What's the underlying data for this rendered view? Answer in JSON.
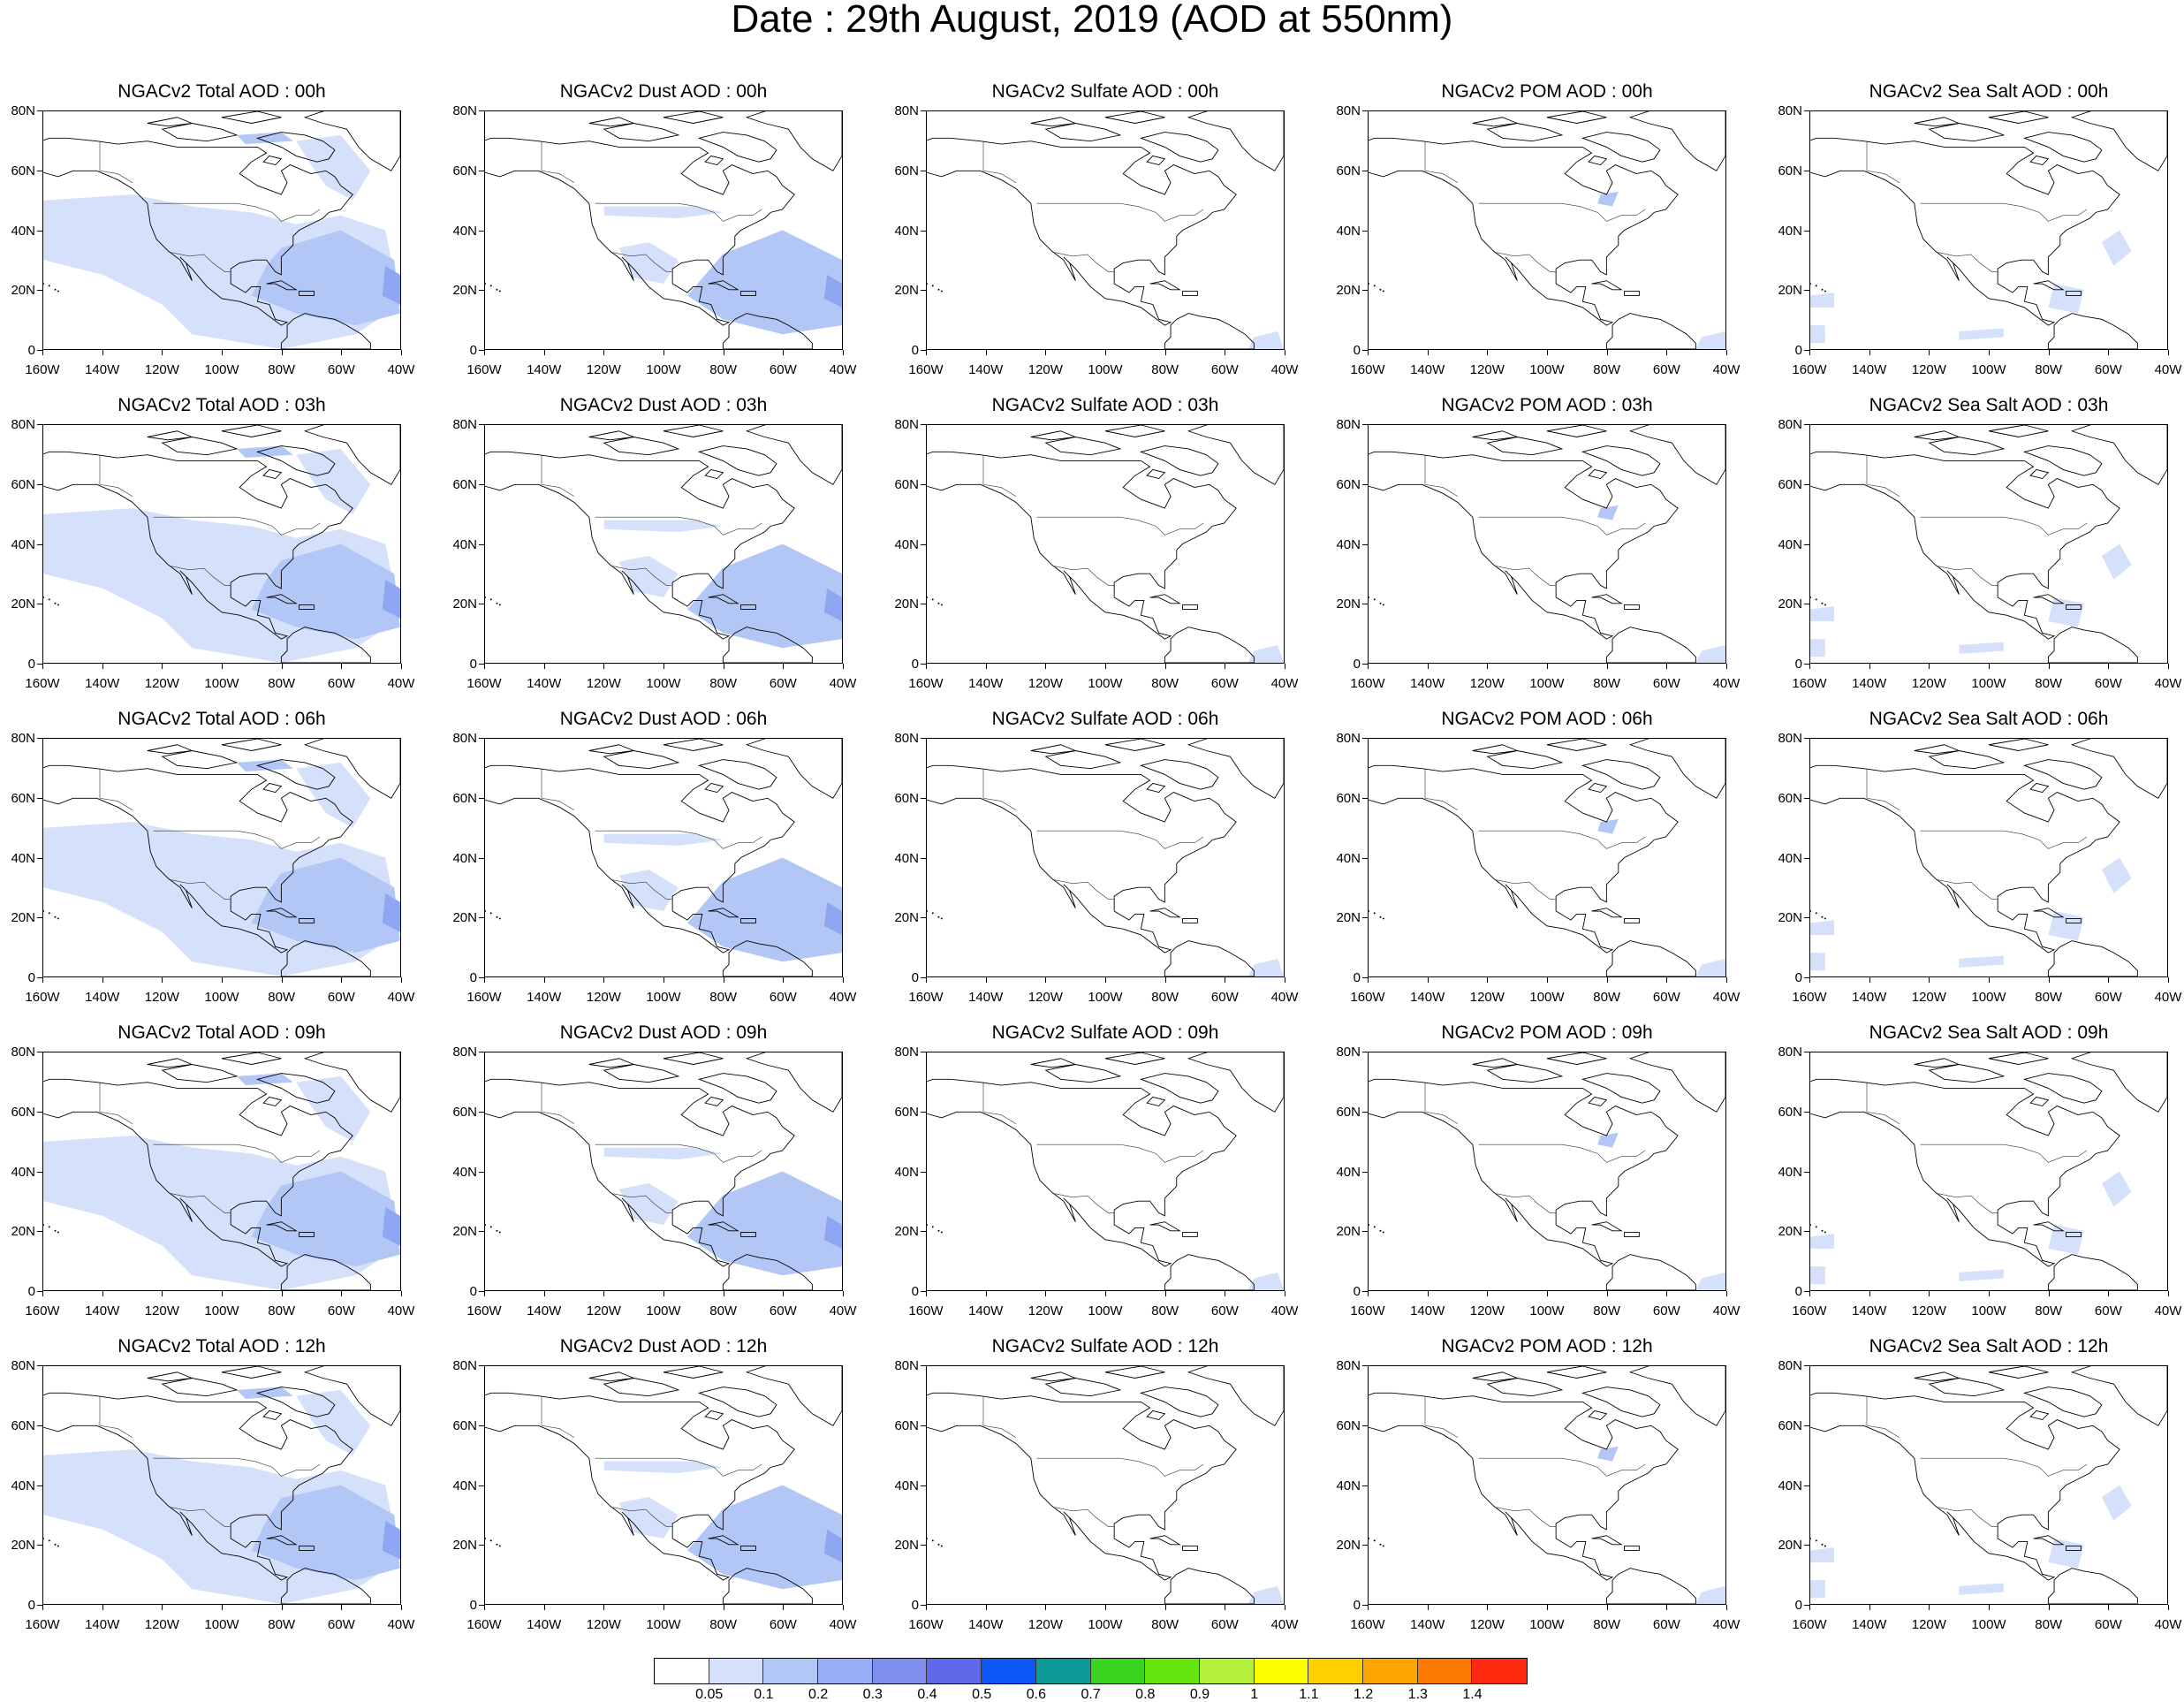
{
  "figure_title": "Date : 29th August, 2019 (AOD at 550nm)",
  "lat_ticks": [
    "0",
    "20N",
    "40N",
    "60N",
    "80N"
  ],
  "lon_ticks": [
    "160W",
    "140W",
    "120W",
    "100W",
    "80W",
    "60W",
    "40W"
  ],
  "panels": [
    {
      "row": 0,
      "col": 0,
      "title": "NGACv2 Total AOD : 00h",
      "species": "total",
      "hour": "00h"
    },
    {
      "row": 0,
      "col": 1,
      "title": "NGACv2 Dust AOD : 00h",
      "species": "dust",
      "hour": "00h"
    },
    {
      "row": 0,
      "col": 2,
      "title": "NGACv2 Sulfate AOD : 00h",
      "species": "sulfate",
      "hour": "00h"
    },
    {
      "row": 0,
      "col": 3,
      "title": "NGACv2 POM AOD : 00h",
      "species": "pom",
      "hour": "00h"
    },
    {
      "row": 0,
      "col": 4,
      "title": "NGACv2 Sea Salt AOD : 00h",
      "species": "seasalt",
      "hour": "00h"
    },
    {
      "row": 1,
      "col": 0,
      "title": "NGACv2 Total AOD : 03h",
      "species": "total",
      "hour": "03h"
    },
    {
      "row": 1,
      "col": 1,
      "title": "NGACv2 Dust AOD : 03h",
      "species": "dust",
      "hour": "03h"
    },
    {
      "row": 1,
      "col": 2,
      "title": "NGACv2 Sulfate AOD : 03h",
      "species": "sulfate",
      "hour": "03h"
    },
    {
      "row": 1,
      "col": 3,
      "title": "NGACv2 POM AOD : 03h",
      "species": "pom",
      "hour": "03h"
    },
    {
      "row": 1,
      "col": 4,
      "title": "NGACv2 Sea Salt AOD : 03h",
      "species": "seasalt",
      "hour": "03h"
    },
    {
      "row": 2,
      "col": 0,
      "title": "NGACv2 Total AOD : 06h",
      "species": "total",
      "hour": "06h"
    },
    {
      "row": 2,
      "col": 1,
      "title": "NGACv2 Dust AOD : 06h",
      "species": "dust",
      "hour": "06h"
    },
    {
      "row": 2,
      "col": 2,
      "title": "NGACv2 Sulfate AOD : 06h",
      "species": "sulfate",
      "hour": "06h"
    },
    {
      "row": 2,
      "col": 3,
      "title": "NGACv2 POM AOD : 06h",
      "species": "pom",
      "hour": "06h"
    },
    {
      "row": 2,
      "col": 4,
      "title": "NGACv2 Sea Salt AOD : 06h",
      "species": "seasalt",
      "hour": "06h"
    },
    {
      "row": 3,
      "col": 0,
      "title": "NGACv2 Total AOD : 09h",
      "species": "total",
      "hour": "09h"
    },
    {
      "row": 3,
      "col": 1,
      "title": "NGACv2 Dust AOD : 09h",
      "species": "dust",
      "hour": "09h"
    },
    {
      "row": 3,
      "col": 2,
      "title": "NGACv2 Sulfate AOD : 09h",
      "species": "sulfate",
      "hour": "09h"
    },
    {
      "row": 3,
      "col": 3,
      "title": "NGACv2 POM AOD : 09h",
      "species": "pom",
      "hour": "09h"
    },
    {
      "row": 3,
      "col": 4,
      "title": "NGACv2 Sea Salt  AOD : 09h",
      "species": "seasalt",
      "hour": "09h"
    },
    {
      "row": 4,
      "col": 0,
      "title": "NGACv2 Total AOD  : 12h",
      "species": "total",
      "hour": "12h"
    },
    {
      "row": 4,
      "col": 1,
      "title": "NGACv2 Dust AOD : 12h",
      "species": "dust",
      "hour": "12h"
    },
    {
      "row": 4,
      "col": 2,
      "title": "NGACv2 Sulfate AOD : 12h",
      "species": "sulfate",
      "hour": "12h"
    },
    {
      "row": 4,
      "col": 3,
      "title": "NGACv2 POM  AOD : 12h",
      "species": "pom",
      "hour": "12h"
    },
    {
      "row": 4,
      "col": 4,
      "title": "NGACv2 Sea Salt  AOD : 12h",
      "species": "seasalt",
      "hour": "12h"
    }
  ],
  "colorbar": {
    "labels": [
      "0.05",
      "0.1",
      "0.2",
      "0.3",
      "0.4",
      "0.5",
      "0.6",
      "0.7",
      "0.8",
      "0.9",
      "1",
      "1.1",
      "1.2",
      "1.3",
      "1.4"
    ],
    "colors": [
      "#ffffff",
      "#d5e1fb",
      "#b3c7f7",
      "#97aef5",
      "#7f8ff0",
      "#5f68e8",
      "#0a57f5",
      "#0d9a96",
      "#3ad31e",
      "#66e60f",
      "#b4f03a",
      "#ffff00",
      "#ffcf00",
      "#ffa500",
      "#ff7a00",
      "#ff2a10"
    ]
  },
  "colors": {
    "aod_low": "#d5e1fb",
    "aod_mid": "#b3c7f7",
    "aod_high": "#8fa6f2",
    "coastline": "#000000"
  }
}
